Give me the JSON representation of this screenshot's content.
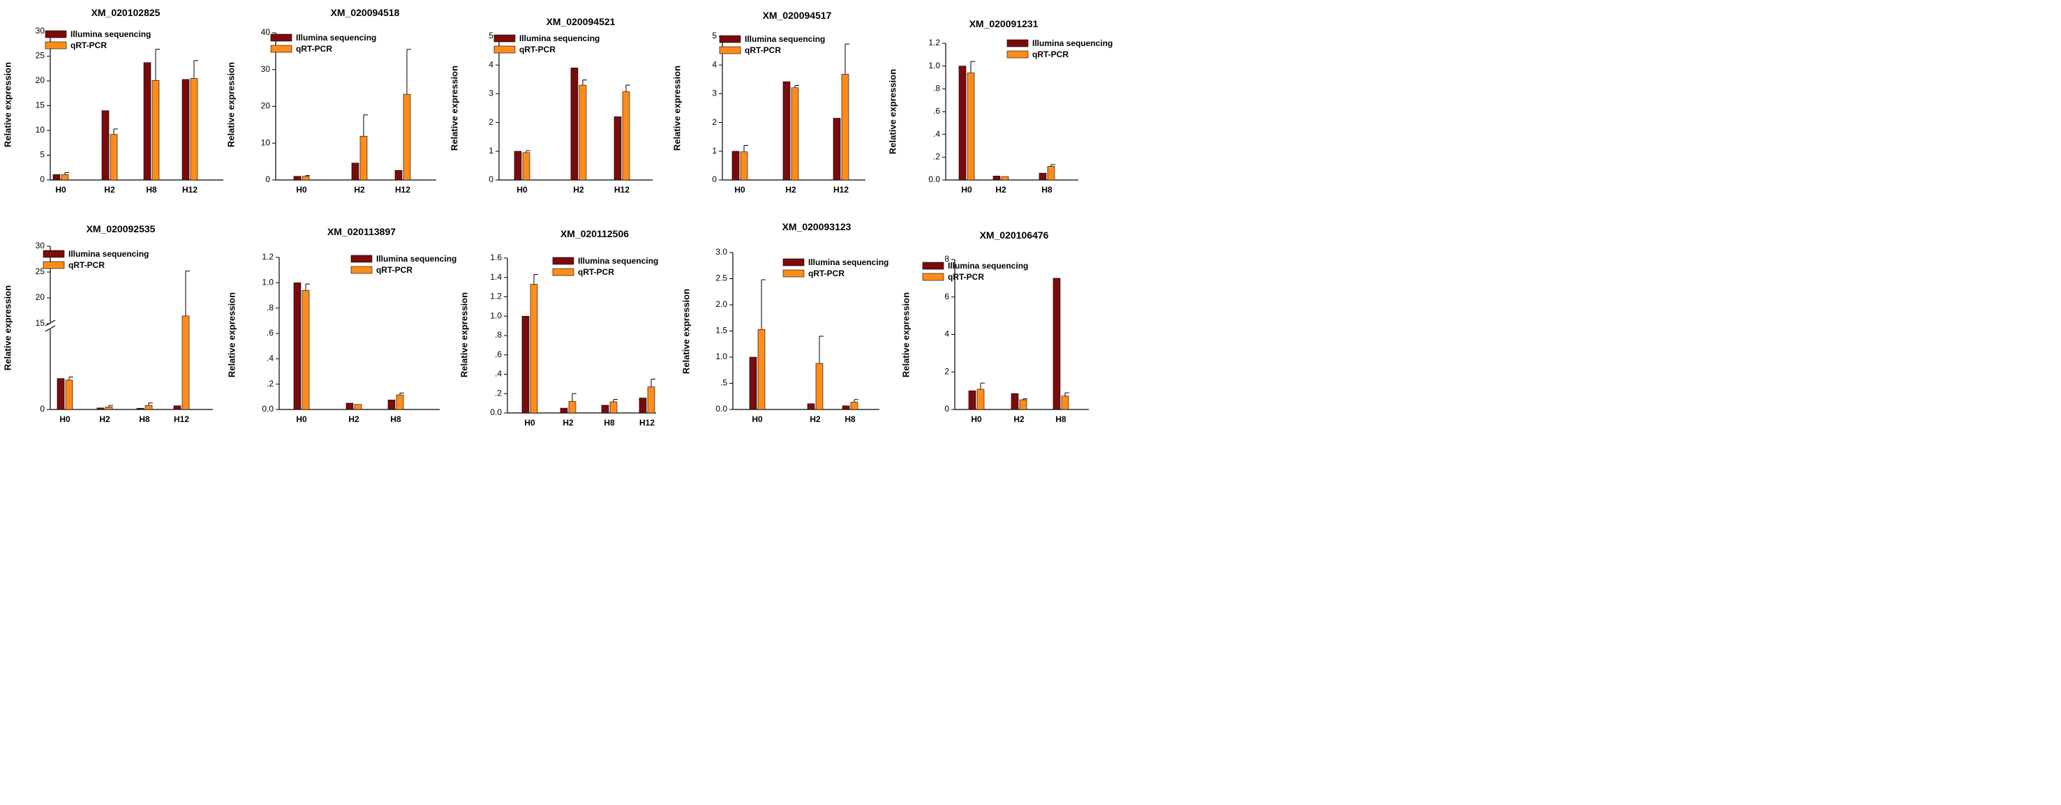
{
  "colors": {
    "illumina": "#7b0b0b",
    "qrt": "#ff8c1a",
    "axis": "#000000"
  },
  "legend": {
    "series_a": "Illumina sequencing",
    "series_b": "qRT-PCR"
  },
  "chart_data": [
    {
      "type": "bar",
      "title": "XM_020102825",
      "ylabel": "Relative expression",
      "categories": [
        "H0",
        "H2",
        "H8",
        "H12"
      ],
      "yticks": [
        "0",
        "5",
        "10",
        "15",
        "20",
        "25",
        "30"
      ],
      "ytick_values": [
        0,
        5,
        10,
        15,
        20,
        25,
        30
      ],
      "ylim": [
        0,
        30
      ],
      "legend_position": "top-left",
      "series": [
        {
          "name": "Illumina sequencing",
          "values": [
            1.1,
            14.0,
            23.7,
            20.3
          ]
        },
        {
          "name": "qRT-PCR",
          "values": [
            1.1,
            9.2,
            20.1,
            20.5
          ],
          "errors": [
            0.4,
            1.1,
            6.3,
            3.6
          ]
        }
      ]
    },
    {
      "type": "bar",
      "title": "XM_020094518",
      "ylabel": "Relative expression",
      "categories": [
        "H0",
        "H2",
        "H12"
      ],
      "yticks": [
        "0",
        "10",
        "20",
        "30",
        "40"
      ],
      "ytick_values": [
        0,
        10,
        20,
        30,
        40
      ],
      "ylim": [
        0,
        40
      ],
      "legend_position": "top-left",
      "series": [
        {
          "name": "Illumina sequencing",
          "values": [
            1.0,
            4.6,
            2.6
          ]
        },
        {
          "name": "qRT-PCR",
          "values": [
            1.0,
            11.9,
            23.3
          ],
          "errors": [
            0.2,
            5.8,
            12.2
          ]
        }
      ]
    },
    {
      "type": "bar",
      "title": "XM_020094521",
      "ylabel": "Relative expression",
      "categories": [
        "H0",
        "H2",
        "H12"
      ],
      "yticks": [
        "0",
        "1",
        "2",
        "3",
        "4",
        "5"
      ],
      "ytick_values": [
        0,
        1,
        2,
        3,
        4,
        5
      ],
      "ylim": [
        0,
        5
      ],
      "legend_position": "top-left",
      "series": [
        {
          "name": "Illumina sequencing",
          "values": [
            1.0,
            3.9,
            2.2
          ]
        },
        {
          "name": "qRT-PCR",
          "values": [
            0.95,
            3.3,
            3.07
          ],
          "errors": [
            0.07,
            0.18,
            0.23
          ]
        }
      ]
    },
    {
      "type": "bar",
      "title": "XM_020094517",
      "ylabel": "Relative expression",
      "categories": [
        "H0",
        "H2",
        "H12"
      ],
      "yticks": [
        "0",
        "1",
        "2",
        "3",
        "4",
        "5"
      ],
      "ytick_values": [
        0,
        1,
        2,
        3,
        4,
        5
      ],
      "ylim": [
        0,
        5
      ],
      "legend_position": "top-left",
      "series": [
        {
          "name": "Illumina sequencing",
          "values": [
            1.0,
            3.42,
            2.15
          ]
        },
        {
          "name": "qRT-PCR",
          "values": [
            0.98,
            3.21,
            3.68
          ],
          "errors": [
            0.22,
            0.08,
            1.05
          ]
        }
      ]
    },
    {
      "type": "bar",
      "title": "XM_020091231",
      "ylabel": "Relative expression",
      "categories": [
        "H0",
        "H2",
        "H8"
      ],
      "yticks": [
        "0.0",
        ".2",
        ".4",
        ".6",
        ".8",
        "1.0",
        "1.2"
      ],
      "ytick_values": [
        0,
        0.2,
        0.4,
        0.6,
        0.8,
        1.0,
        1.2
      ],
      "ylim": [
        0,
        1.2
      ],
      "legend_position": "top-right",
      "series": [
        {
          "name": "Illumina sequencing",
          "values": [
            1.0,
            0.035,
            0.06
          ]
        },
        {
          "name": "qRT-PCR",
          "values": [
            0.94,
            0.03,
            0.12
          ],
          "errors": [
            0.1,
            0.0,
            0.015
          ]
        }
      ]
    },
    {
      "type": "bar",
      "title": "XM_020092535",
      "ylabel": "Relative expression",
      "categories": [
        "H0",
        "H2",
        "H8",
        "H12"
      ],
      "yticks": [
        "0",
        "15",
        "20",
        "25",
        "30"
      ],
      "ytick_values": [
        0,
        15,
        20,
        25,
        30
      ],
      "ylim": [
        0,
        30
      ],
      "axis_break": [
        2.5,
        15
      ],
      "legend_position": "top-left",
      "series": [
        {
          "name": "Illumina sequencing",
          "values": [
            1.0,
            0.05,
            0.04,
            0.12
          ]
        },
        {
          "name": "qRT-PCR",
          "values": [
            0.95,
            0.08,
            0.13,
            16.5
          ],
          "errors": [
            0.1,
            0.05,
            0.08,
            8.7
          ]
        }
      ]
    },
    {
      "type": "bar",
      "title": "XM_020113897",
      "ylabel": "Relative expression",
      "categories": [
        "H0",
        "H2",
        "H8"
      ],
      "yticks": [
        "0.0",
        ".2",
        ".4",
        ".6",
        ".8",
        "1.0",
        "1.2"
      ],
      "ytick_values": [
        0,
        0.2,
        0.4,
        0.6,
        0.8,
        1.0,
        1.2
      ],
      "ylim": [
        0,
        1.2
      ],
      "legend_position": "top-right",
      "series": [
        {
          "name": "Illumina sequencing",
          "values": [
            1.0,
            0.05,
            0.075
          ]
        },
        {
          "name": "qRT-PCR",
          "values": [
            0.94,
            0.04,
            0.115
          ],
          "errors": [
            0.05,
            0.0,
            0.015
          ]
        }
      ]
    },
    {
      "type": "bar",
      "title": "XM_020112506",
      "ylabel": "Relative expression",
      "categories": [
        "H0",
        "H2",
        "H8",
        "H12"
      ],
      "yticks": [
        "0.0",
        ".2",
        ".4",
        ".6",
        ".8",
        "1.0",
        "1.2",
        "1.4",
        "1.6"
      ],
      "ytick_values": [
        0,
        0.2,
        0.4,
        0.6,
        0.8,
        1.0,
        1.2,
        1.4,
        1.6
      ],
      "ylim": [
        0,
        1.6
      ],
      "legend_position": "top-right",
      "series": [
        {
          "name": "Illumina sequencing",
          "values": [
            1.0,
            0.05,
            0.08,
            0.155
          ]
        },
        {
          "name": "qRT-PCR",
          "values": [
            1.33,
            0.12,
            0.115,
            0.27
          ],
          "errors": [
            0.1,
            0.08,
            0.025,
            0.08
          ]
        }
      ]
    },
    {
      "type": "bar",
      "title": "XM_020093123",
      "ylabel": "Relative expression",
      "categories": [
        "H0",
        "H2",
        "H8"
      ],
      "yticks": [
        "0.0",
        ".5",
        "1.0",
        "1.5",
        "2.0",
        "2.5",
        "3.0"
      ],
      "ytick_values": [
        0,
        0.5,
        1.0,
        1.5,
        2.0,
        2.5,
        3.0
      ],
      "ylim": [
        0,
        3.0
      ],
      "legend_position": "top-right",
      "series": [
        {
          "name": "Illumina sequencing",
          "values": [
            1.0,
            0.11,
            0.07
          ]
        },
        {
          "name": "qRT-PCR",
          "values": [
            1.53,
            0.88,
            0.14
          ],
          "errors": [
            0.95,
            0.52,
            0.05
          ]
        }
      ]
    },
    {
      "type": "bar",
      "title": "XM_020106476",
      "ylabel": "Relative expression",
      "categories": [
        "H0",
        "H2",
        "H8"
      ],
      "yticks": [
        "0",
        "2",
        "4",
        "6",
        "8"
      ],
      "ytick_values": [
        0,
        2,
        4,
        6,
        8
      ],
      "ylim": [
        0,
        8
      ],
      "legend_position": "top-left",
      "series": [
        {
          "name": "Illumina sequencing",
          "values": [
            1.0,
            0.85,
            7.0
          ]
        },
        {
          "name": "qRT-PCR",
          "values": [
            1.08,
            0.52,
            0.72
          ],
          "errors": [
            0.33,
            0.05,
            0.17
          ]
        }
      ]
    }
  ]
}
